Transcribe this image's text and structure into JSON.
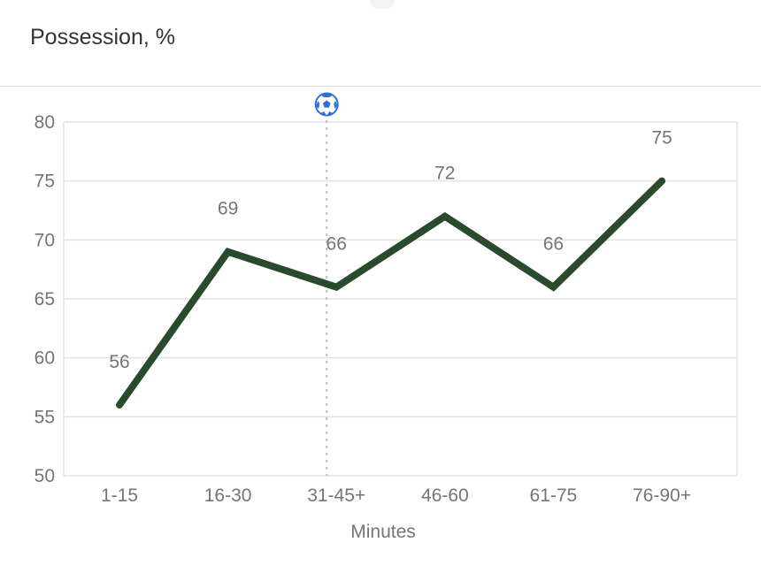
{
  "header": {
    "title": "Possession, %"
  },
  "chart_data": {
    "type": "line",
    "categories": [
      "1-15",
      "16-30",
      "31-45+",
      "46-60",
      "61-75",
      "76-90+"
    ],
    "series": [
      {
        "values": [
          56,
          69,
          66,
          72,
          66,
          75
        ],
        "color": "#2a4a2e"
      }
    ],
    "xlabel": "Minutes",
    "ylabel": "",
    "ylim": [
      50,
      80
    ],
    "yticks": [
      50,
      55,
      60,
      65,
      70,
      75,
      80
    ],
    "grid": true,
    "marker": {
      "category": "31-45+",
      "icon": "soccer-ball-icon",
      "color": "#2f6fd6"
    }
  }
}
